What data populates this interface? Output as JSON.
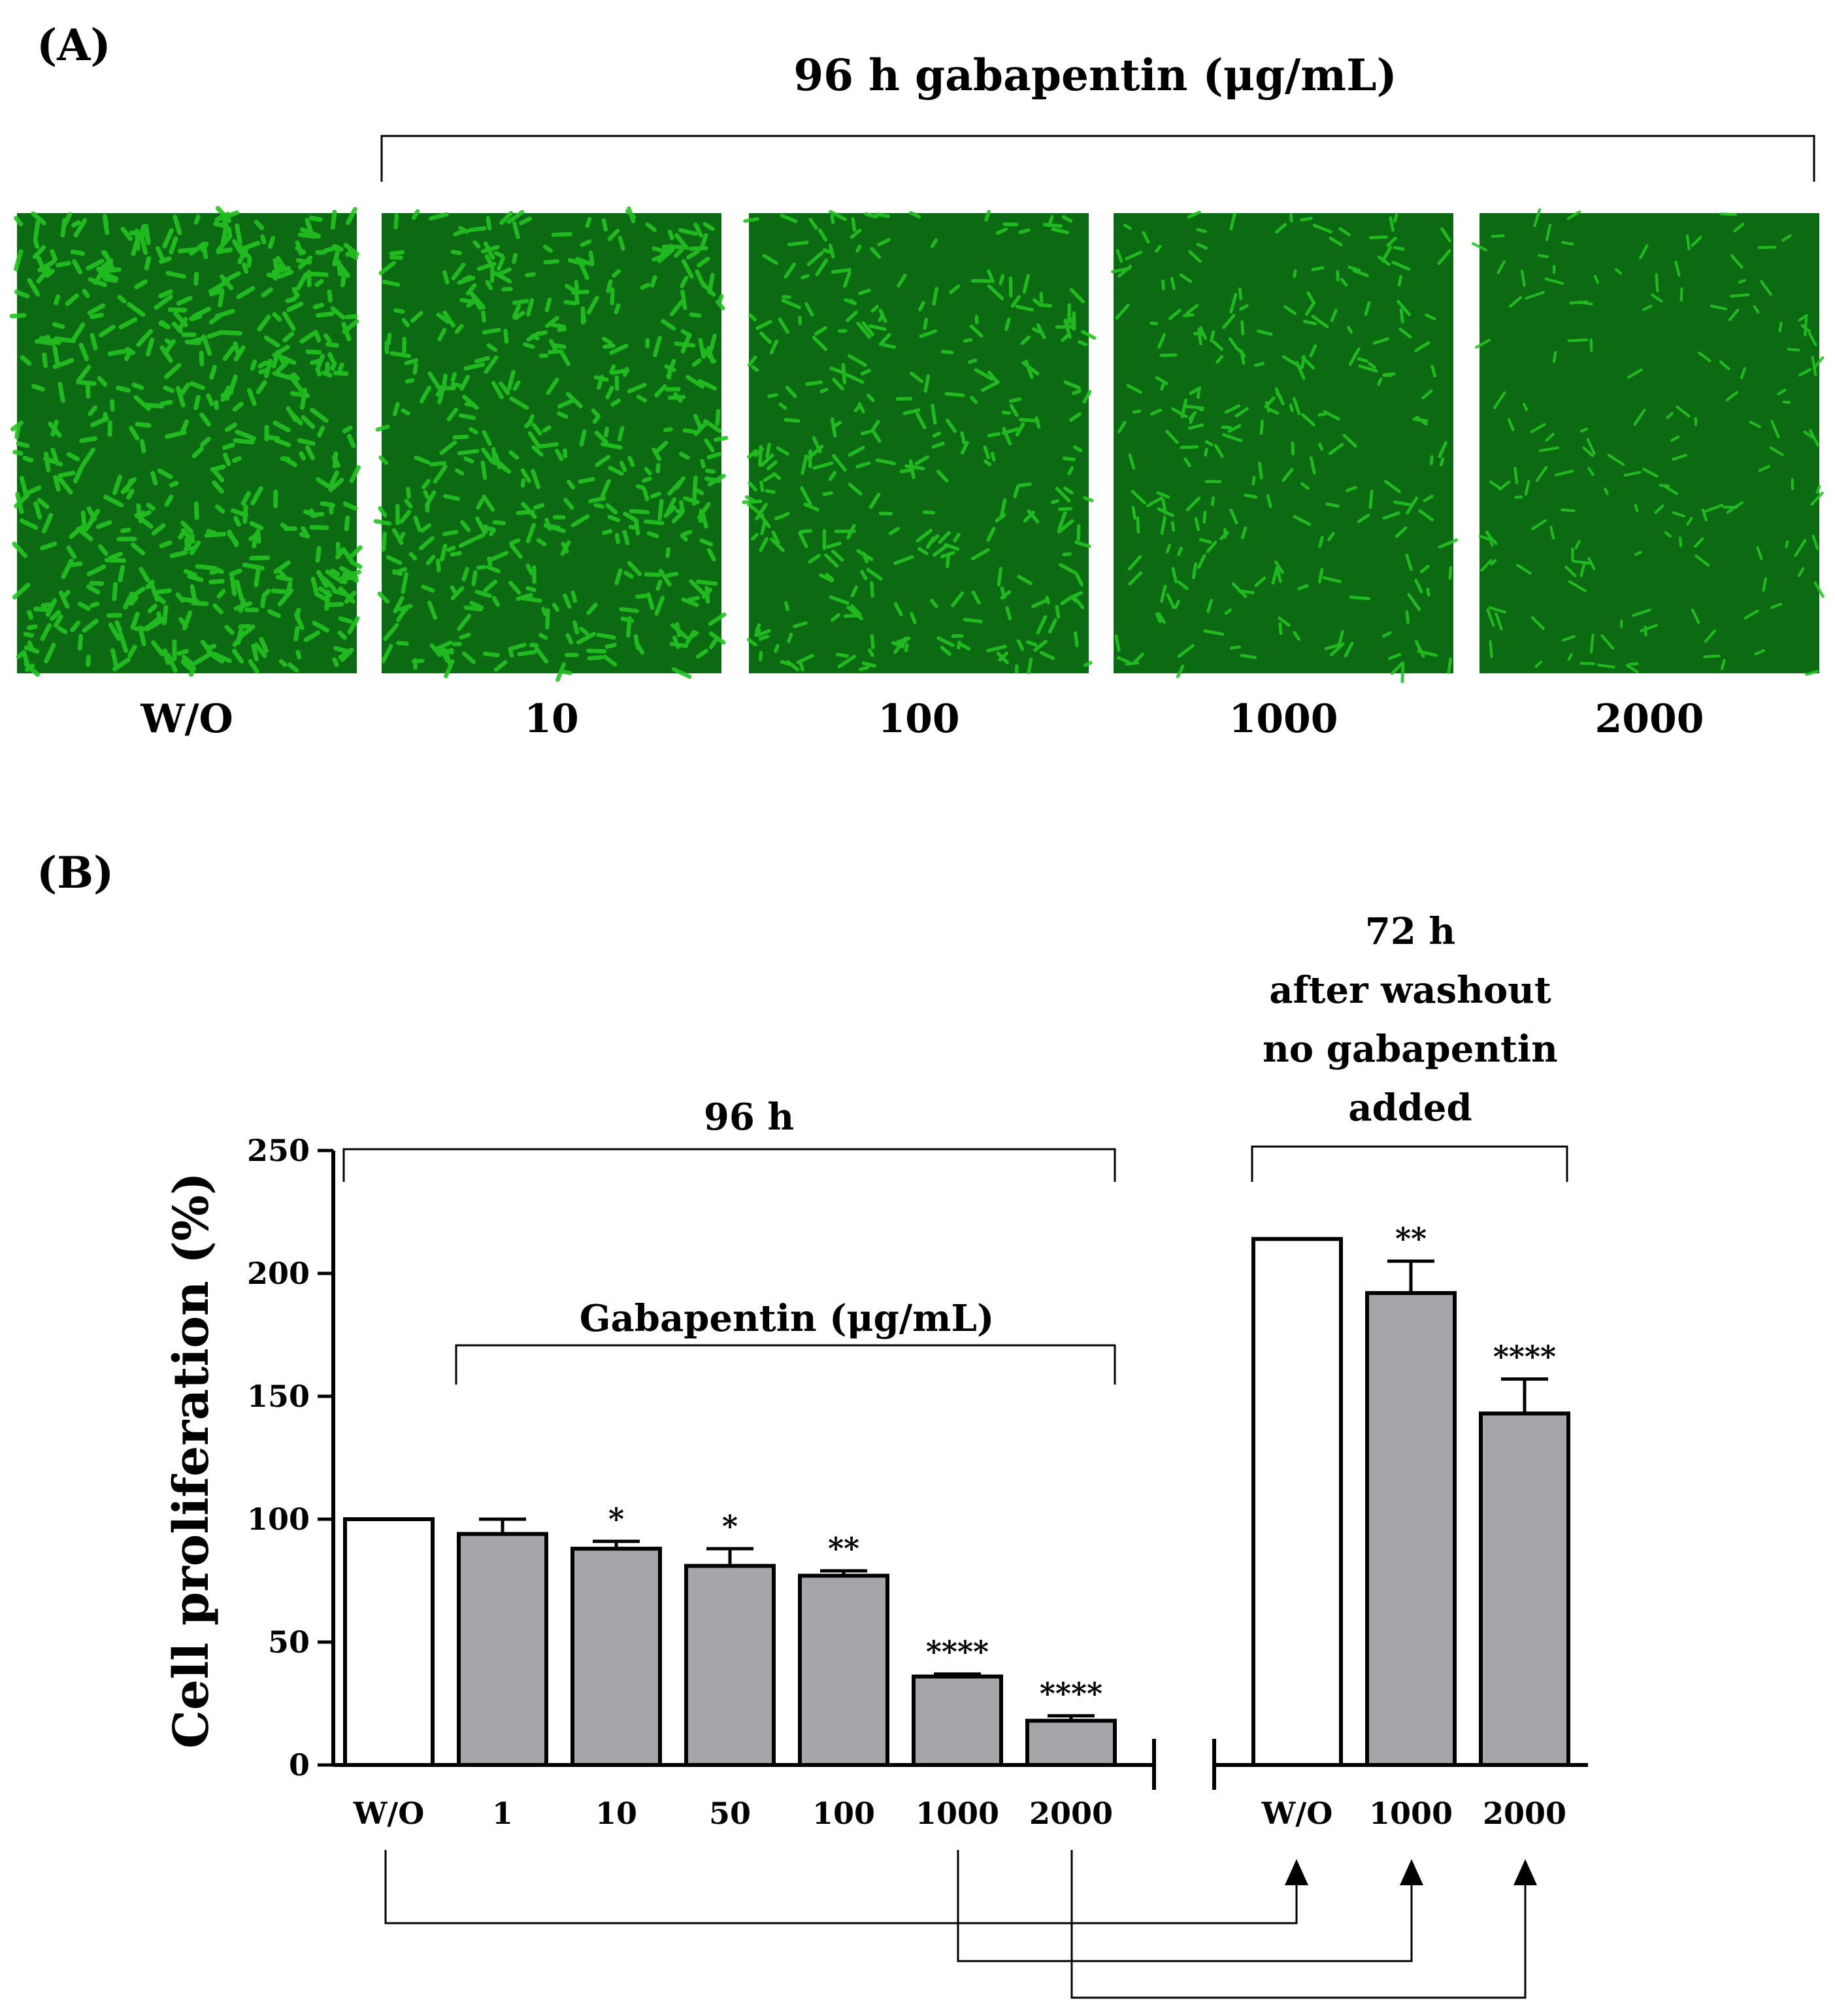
{
  "panel_a": {
    "label": "(A)",
    "header": "96 h gabapentin (μg/mL)",
    "images": [
      {
        "label": "W/O",
        "density": 1.0
      },
      {
        "label": "10",
        "density": 0.85
      },
      {
        "label": "100",
        "density": 0.6
      },
      {
        "label": "1000",
        "density": 0.45
      },
      {
        "label": "2000",
        "density": 0.3
      }
    ],
    "colors": {
      "cell_green": "#22c322",
      "background_green": "#0b6a12"
    }
  },
  "panel_b": {
    "label": "(B)",
    "group_96h_label": "96 h",
    "gabapentin_label": "Gabapentin (μg/mL)",
    "washout_label_lines": [
      "72 h",
      "after washout",
      "no gabapentin",
      "added"
    ]
  },
  "chart_data": {
    "type": "bar",
    "ylabel": "Cell proliferation (%)",
    "ylim": [
      0,
      250
    ],
    "yticks": [
      "0",
      "50",
      "100",
      "150",
      "200",
      "250"
    ],
    "ytick_values": [
      0,
      50,
      100,
      150,
      200,
      250
    ],
    "groups": [
      {
        "categories": [
          "W/O",
          "1",
          "10",
          "50",
          "100",
          "1000",
          "2000"
        ],
        "values": [
          100,
          94,
          88,
          81,
          77,
          36,
          18
        ],
        "errors": [
          0,
          6,
          3,
          7,
          2,
          1,
          2
        ],
        "significance": [
          "",
          "",
          "*",
          "*",
          "**",
          "****",
          "****"
        ],
        "fills": [
          "#ffffff",
          "#a5a5aa",
          "#a5a5aa",
          "#a5a5aa",
          "#a5a5aa",
          "#a5a5aa",
          "#a5a5aa"
        ]
      },
      {
        "categories": [
          "W/O",
          "1000",
          "2000"
        ],
        "values": [
          214,
          192,
          143
        ],
        "errors": [
          0,
          13,
          14
        ],
        "significance": [
          "",
          "**",
          "****"
        ],
        "fills": [
          "#ffffff",
          "#a5a5aa",
          "#a5a5aa"
        ]
      }
    ]
  }
}
